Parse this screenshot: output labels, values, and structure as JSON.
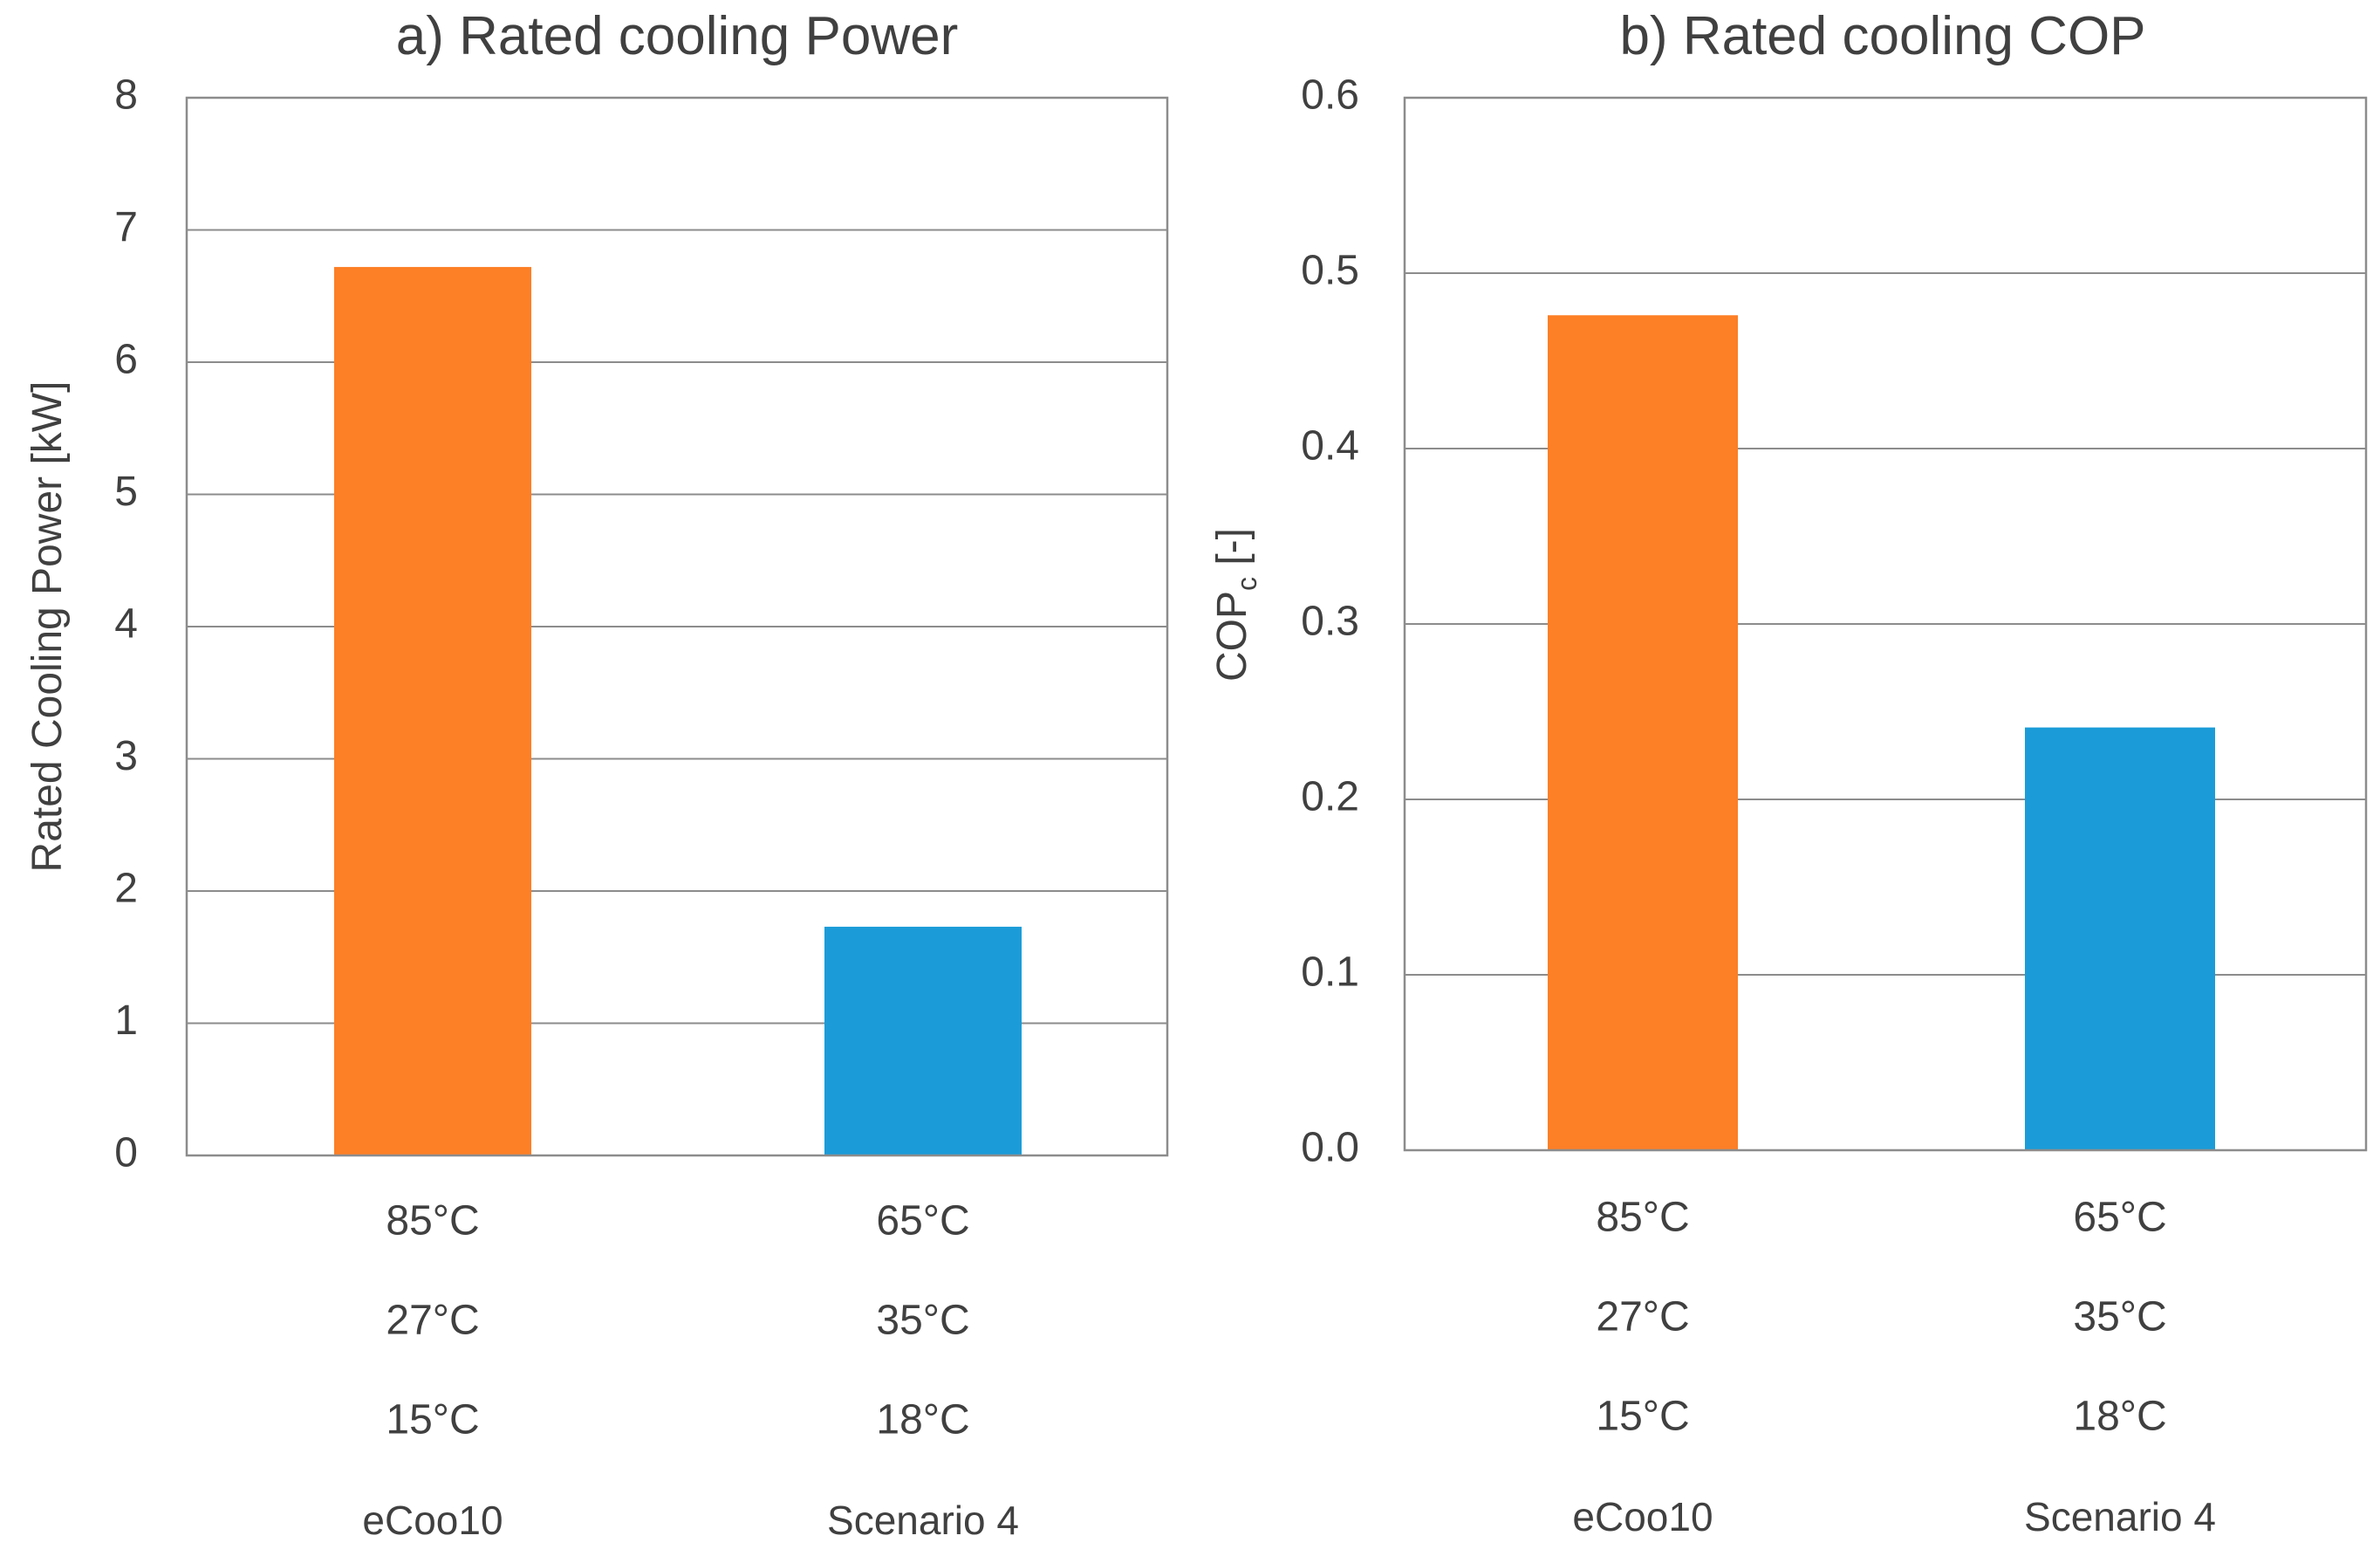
{
  "chart_data": [
    {
      "type": "bar",
      "title": "a) Rated cooling Power",
      "ylabel": "Rated Cooling Power [kW]",
      "xlabel": "",
      "ylim": [
        0,
        8
      ],
      "yticks": [
        "0",
        "1",
        "2",
        "3",
        "4",
        "5",
        "6",
        "7",
        "8"
      ],
      "grid": true,
      "categories": [
        {
          "temps": [
            "85°C",
            "27°C",
            "15°C"
          ],
          "name": "eCoo10"
        },
        {
          "temps": [
            "65°C",
            "35°C",
            "18°C"
          ],
          "name": "Scenario 4"
        }
      ],
      "values": [
        6.72,
        1.73
      ],
      "colors": [
        "#fd7f26",
        "#1b9cd8"
      ]
    },
    {
      "type": "bar",
      "title": "b) Rated cooling COP",
      "ylabel": "COP",
      "ylabel_subscript": "c",
      "ylabel_suffix": " [-]",
      "xlabel": "",
      "ylim": [
        0,
        0.6
      ],
      "yticks": [
        "0.0",
        "0.1",
        "0.2",
        "0.3",
        "0.4",
        "0.5",
        "0.6"
      ],
      "grid": true,
      "categories": [
        {
          "temps": [
            "85°C",
            "27°C",
            "15°C"
          ],
          "name": "eCoo10"
        },
        {
          "temps": [
            "65°C",
            "35°C",
            "18°C"
          ],
          "name": "Scenario 4"
        }
      ],
      "values": [
        0.476,
        0.241
      ],
      "colors": [
        "#fd7f26",
        "#1b9cd8"
      ]
    }
  ]
}
